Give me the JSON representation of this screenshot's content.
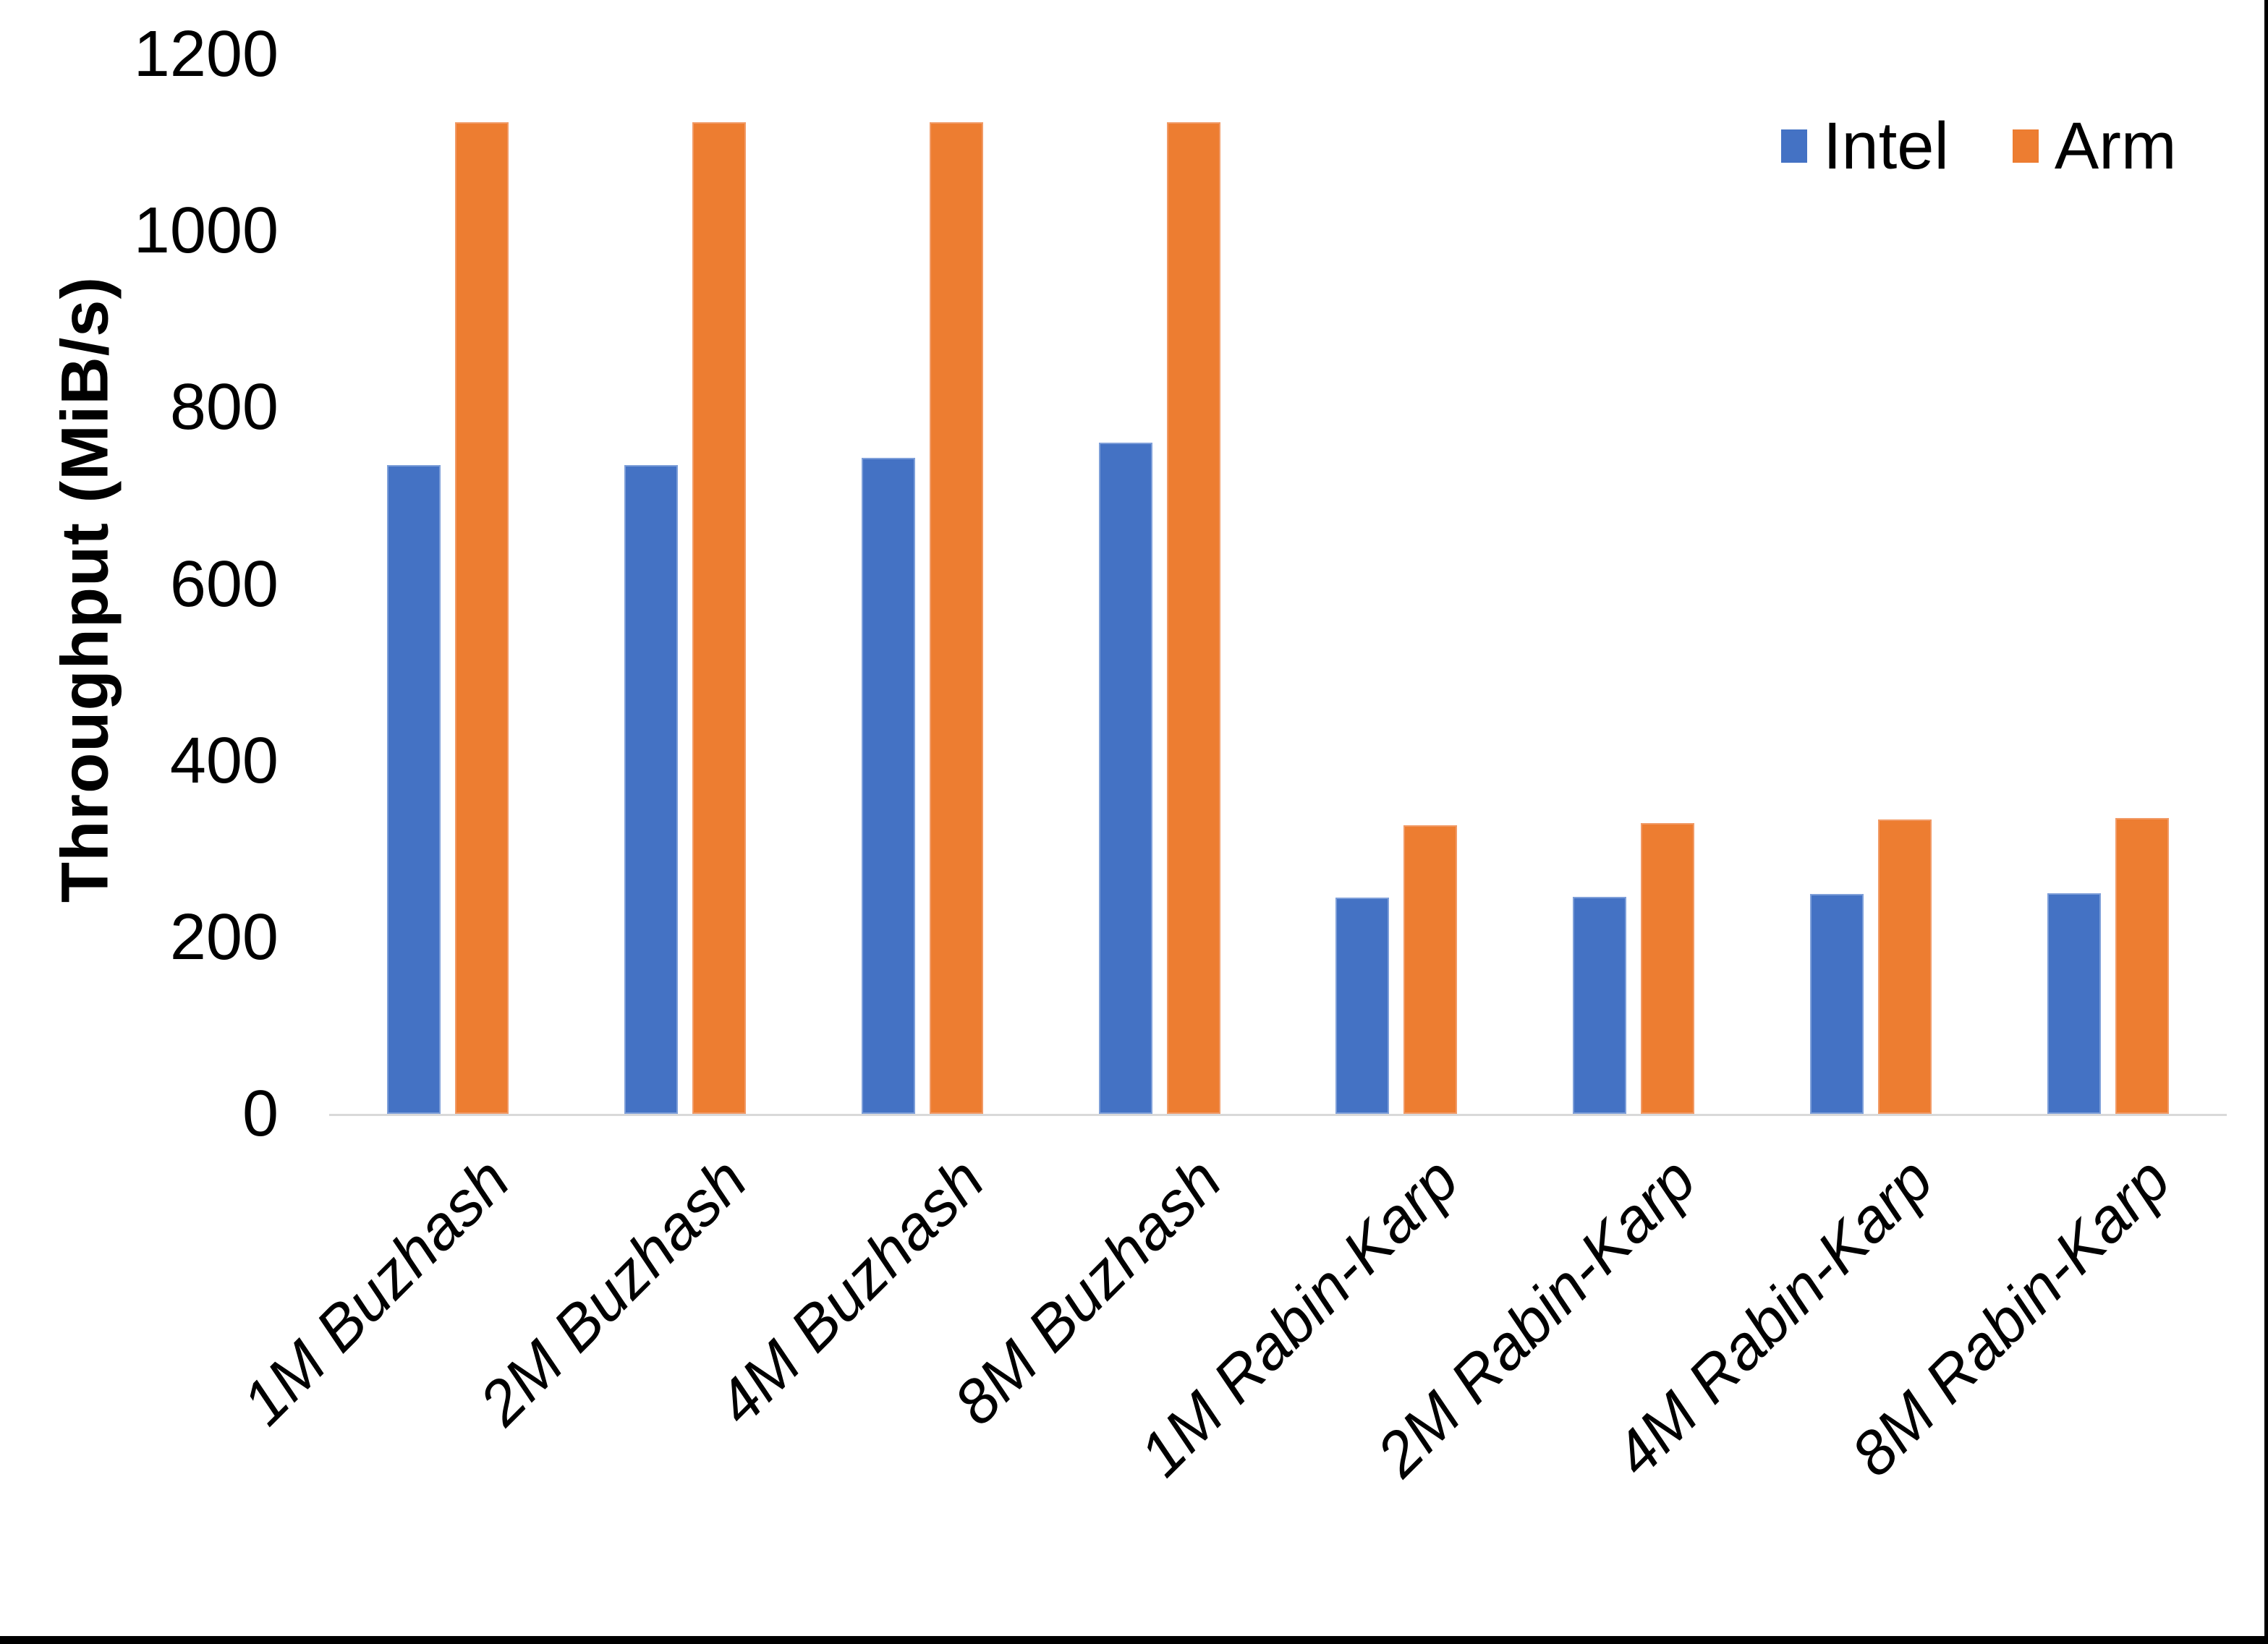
{
  "chart": {
    "y_axis_title": "Throughput (MiB/s)",
    "colors": {
      "intel": "#4472C4",
      "arm": "#ED7D31",
      "axis_line": "#D9D9D9",
      "frame": "#000000"
    }
  },
  "chart_data": {
    "type": "bar",
    "title": "",
    "categories": [
      "1M Buzhash",
      "2M Buzhash",
      "4M Buzhash",
      "8M Buzhash",
      "1M Rabin-Karp",
      "2M Rabin-Karp",
      "4M Rabin-Karp",
      "8M Rabin-Karp"
    ],
    "series": [
      {
        "name": "Intel",
        "color": "#4472C4",
        "values": [
          735,
          735,
          743,
          760,
          245,
          246,
          249,
          250
        ]
      },
      {
        "name": "Arm",
        "color": "#ED7D31",
        "values": [
          1123,
          1123,
          1123,
          1123,
          327,
          329,
          333,
          335
        ]
      }
    ],
    "xlabel": "",
    "ylabel": "Throughput (MiB/s)",
    "ylim": [
      0,
      1200
    ],
    "yticks": [
      0,
      200,
      400,
      600,
      800,
      1000,
      1200
    ],
    "grid": false,
    "legend_position": "top-right"
  }
}
